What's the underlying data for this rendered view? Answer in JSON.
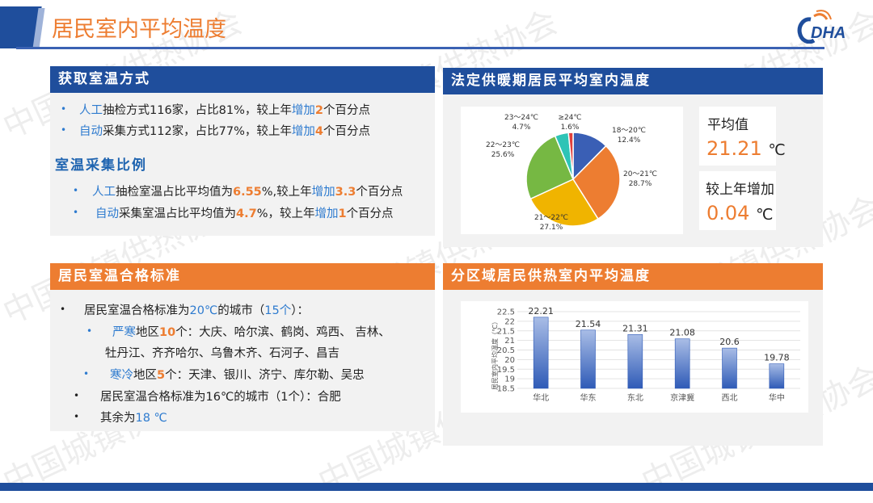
{
  "title": "居民室内平均温度",
  "logo_text": "DHA",
  "watermark": "中国城镇供热协会",
  "colors": {
    "blue": "#1f4e9c",
    "orange": "#ed7d31",
    "accent_text": "#2e7bcf"
  },
  "method": {
    "header": "获取室温方式",
    "items": [
      {
        "a": "人工",
        "b": "抽检方式116家，占比81%，较上年",
        "c": "增加",
        "d": "2",
        "e": "个百分点"
      },
      {
        "a": "自动",
        "b": "采集方式112家，占比77%，较上年",
        "c": "增加",
        "d": "4",
        "e": "个百分点"
      }
    ],
    "subheader": "室温采集比例",
    "ratio": [
      {
        "a": "人工",
        "b": "抽检室温占比平均值为",
        "v": "6.55",
        "p": "%,较上年",
        "c": "增加",
        "d": "3.3",
        "e": "个百分点"
      },
      {
        "a": "自动",
        "b": "采集室温占比平均值为",
        "v": "4.7",
        "p": "%，较上年",
        "c": "增加",
        "d": "1",
        "e": "个百分点"
      }
    ]
  },
  "standard": {
    "header": "居民室温合格标准",
    "l1a": "居民室温合格标准为",
    "l1b": "20℃",
    "l1c": "的城市（",
    "l1d": "15个",
    "l1e": "）：",
    "s1a": "严寒",
    "s1b": "地区",
    "s1c": "10",
    "s1d": "个：大庆、哈尔滨、鹤岗、鸡西、 吉林、",
    "s1e": "牡丹江、齐齐哈尔、乌鲁木齐、石河子、昌吉",
    "s2a": "寒冷",
    "s2b": "地区",
    "s2c": "5",
    "s2d": "个：天津、银川、济宁、库尔勒、吴忠",
    "l2": "居民室温合格标准为16℃的城市（1个）：合肥",
    "l3a": "其余为",
    "l3b": "18 ℃"
  },
  "pie_section": {
    "header": "法定供暖期居民平均室内温度",
    "avg_label": "平均值",
    "avg_value": "21.21",
    "avg_unit": "℃",
    "inc_label": "较上年增加",
    "inc_value": "0.04",
    "inc_unit": "℃"
  },
  "bar_section": {
    "header": "分区域居民供热室内平均温度"
  },
  "chart_data": [
    {
      "type": "pie",
      "categories": [
        "18～20℃",
        "20～21℃",
        "21～22℃",
        "22～23℃",
        "23～24℃",
        "≥24℃"
      ],
      "values": [
        12.4,
        28.7,
        27.1,
        25.6,
        4.7,
        1.6
      ],
      "labels": [
        "12.4%",
        "28.7%",
        "27.1%",
        "25.6%",
        "4.7%",
        "1.6%"
      ],
      "colors": [
        "#3a5fb5",
        "#ed7d31",
        "#f0b400",
        "#76b843",
        "#2ec4b6",
        "#e0403c"
      ]
    },
    {
      "type": "bar",
      "categories": [
        "华北",
        "华东",
        "东北",
        "京津冀",
        "西北",
        "华中"
      ],
      "values": [
        22.21,
        21.54,
        21.31,
        21.08,
        20.6,
        19.78
      ],
      "labels": [
        "22.21",
        "21.54",
        "21.31",
        "21.08",
        "20.6",
        "19.78"
      ],
      "ylabel": "居民室内平均温度（℃）",
      "ylim": [
        18.5,
        22.5
      ],
      "yticks": [
        "18.5",
        "19",
        "19.5",
        "20",
        "20.5",
        "21",
        "21.5",
        "22",
        "22.5"
      ],
      "grid": true
    }
  ]
}
